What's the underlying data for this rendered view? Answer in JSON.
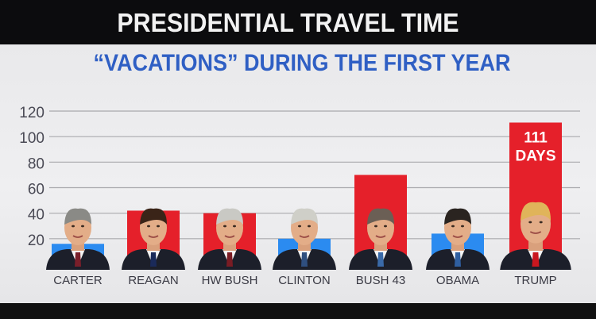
{
  "title": "PRESIDENTIAL TRAVEL TIME",
  "subtitle": "“VACATIONS” DURING THE FIRST YEAR",
  "colors": {
    "blue": "#2b8bf0",
    "red": "#e5202a",
    "gridline": "#a9a9ad",
    "tick": "#4a4a55",
    "subtitle": "#2f5fc4"
  },
  "chart_data": {
    "type": "bar",
    "categories": [
      "CARTER",
      "REAGAN",
      "HW BUSH",
      "CLINTON",
      "BUSH 43",
      "OBAMA",
      "TRUMP"
    ],
    "values": [
      16,
      42,
      40,
      20,
      70,
      24,
      111
    ],
    "bar_colors": [
      "blue",
      "red",
      "red",
      "blue",
      "red",
      "blue",
      "red"
    ],
    "yticks": [
      20,
      40,
      60,
      80,
      100,
      120
    ],
    "ylim": [
      0,
      120
    ],
    "grid": true,
    "annotations": [
      {
        "category": "TRUMP",
        "lines": [
          "111",
          "DAYS"
        ]
      }
    ],
    "portraits": [
      "carter-portrait",
      "reagan-portrait",
      "hw-bush-portrait",
      "clinton-portrait",
      "bush-43-portrait",
      "obama-portrait",
      "trump-portrait"
    ]
  }
}
